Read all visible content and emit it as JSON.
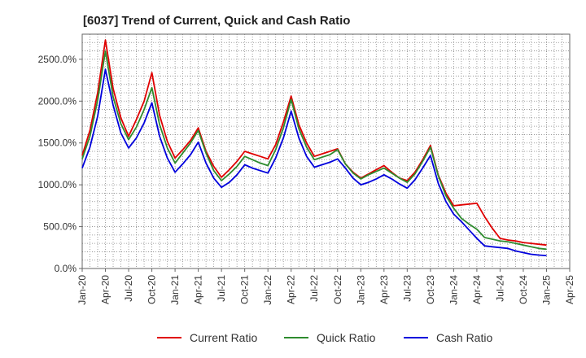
{
  "chart_data": {
    "type": "line",
    "title": "[6037]  Trend of Current, Quick and Cash Ratio",
    "xlabel": "",
    "ylabel": "",
    "ylim": [
      0,
      2800
    ],
    "y_ticks": [
      0,
      500,
      1000,
      1500,
      2000,
      2500
    ],
    "y_tick_labels": [
      "0.0%",
      "500.0%",
      "1000.0%",
      "1500.0%",
      "2000.0%",
      "2500.0%"
    ],
    "x_tick_labels": [
      "Jan-20",
      "Apr-20",
      "Jul-20",
      "Oct-20",
      "Jan-21",
      "Apr-21",
      "Jul-21",
      "Oct-21",
      "Jan-22",
      "Apr-22",
      "Jul-22",
      "Oct-22",
      "Jan-23",
      "Apr-23",
      "Jul-23",
      "Oct-23",
      "Jan-24",
      "Apr-24",
      "Jul-24",
      "Oct-24",
      "Jan-25",
      "Apr-25"
    ],
    "x_range_months": [
      0,
      63
    ],
    "grid": true,
    "legend_position": "bottom",
    "series": [
      {
        "name": "Current Ratio",
        "color": "#e00000",
        "x": [
          0,
          1,
          2,
          3,
          4,
          5,
          6,
          7,
          8,
          9,
          10,
          11,
          12,
          13,
          14,
          15,
          16,
          17,
          18,
          19,
          20,
          21,
          22,
          23,
          24,
          25,
          26,
          27,
          28,
          29,
          30,
          31,
          32,
          33,
          34,
          35,
          36,
          37,
          38,
          39,
          40,
          41,
          42,
          43,
          44,
          45,
          46,
          47,
          48,
          49,
          50,
          51,
          52,
          53,
          54,
          55,
          56,
          57,
          58,
          59,
          60
        ],
        "values": [
          1350,
          1650,
          2100,
          2730,
          2150,
          1800,
          1580,
          1780,
          2000,
          2340,
          1830,
          1520,
          1320,
          1420,
          1530,
          1680,
          1400,
          1220,
          1090,
          1180,
          1280,
          1400,
          1370,
          1340,
          1310,
          1480,
          1750,
          2060,
          1720,
          1500,
          1340,
          1370,
          1400,
          1430,
          1250,
          1150,
          1080,
          1130,
          1180,
          1230,
          1150,
          1080,
          1050,
          1150,
          1300,
          1470,
          1120,
          900,
          750,
          760,
          770,
          780,
          620,
          480,
          360,
          340,
          330,
          310,
          300,
          290,
          280
        ]
      },
      {
        "name": "Quick Ratio",
        "color": "#2e8b2e",
        "x": [
          0,
          1,
          2,
          3,
          4,
          5,
          6,
          7,
          8,
          9,
          10,
          11,
          12,
          13,
          14,
          15,
          16,
          17,
          18,
          19,
          20,
          21,
          22,
          23,
          24,
          25,
          26,
          27,
          28,
          29,
          30,
          31,
          32,
          33,
          34,
          35,
          36,
          37,
          38,
          39,
          40,
          41,
          42,
          43,
          44,
          45,
          46,
          47,
          48,
          49,
          50,
          51,
          52,
          53,
          54,
          55,
          56,
          57,
          58,
          59,
          60
        ],
        "values": [
          1310,
          1580,
          2010,
          2600,
          2050,
          1730,
          1540,
          1690,
          1900,
          2160,
          1720,
          1440,
          1260,
          1380,
          1500,
          1650,
          1380,
          1170,
          1050,
          1130,
          1220,
          1340,
          1300,
          1260,
          1230,
          1420,
          1680,
          2020,
          1670,
          1450,
          1300,
          1330,
          1360,
          1420,
          1250,
          1140,
          1070,
          1120,
          1160,
          1200,
          1140,
          1080,
          1030,
          1130,
          1280,
          1450,
          1110,
          870,
          720,
          600,
          530,
          470,
          370,
          350,
          330,
          320,
          300,
          280,
          260,
          240,
          230
        ]
      },
      {
        "name": "Cash Ratio",
        "color": "#0000dd",
        "x": [
          0,
          1,
          2,
          3,
          4,
          5,
          6,
          7,
          8,
          9,
          10,
          11,
          12,
          13,
          14,
          15,
          16,
          17,
          18,
          19,
          20,
          21,
          22,
          23,
          24,
          25,
          26,
          27,
          28,
          29,
          30,
          31,
          32,
          33,
          34,
          35,
          36,
          37,
          38,
          39,
          40,
          41,
          42,
          43,
          44,
          45,
          46,
          47,
          48,
          49,
          50,
          51,
          52,
          53,
          54,
          55,
          56,
          57,
          58,
          59,
          60
        ],
        "values": [
          1200,
          1450,
          1820,
          2380,
          1950,
          1620,
          1440,
          1560,
          1740,
          1980,
          1580,
          1320,
          1150,
          1250,
          1360,
          1510,
          1260,
          1080,
          970,
          1030,
          1120,
          1240,
          1200,
          1170,
          1140,
          1320,
          1560,
          1880,
          1560,
          1340,
          1210,
          1240,
          1270,
          1310,
          1200,
          1080,
          1000,
          1030,
          1070,
          1120,
          1070,
          1010,
          960,
          1060,
          1200,
          1350,
          1020,
          800,
          650,
          560,
          460,
          360,
          270,
          260,
          250,
          240,
          210,
          190,
          170,
          160,
          155
        ]
      }
    ]
  }
}
